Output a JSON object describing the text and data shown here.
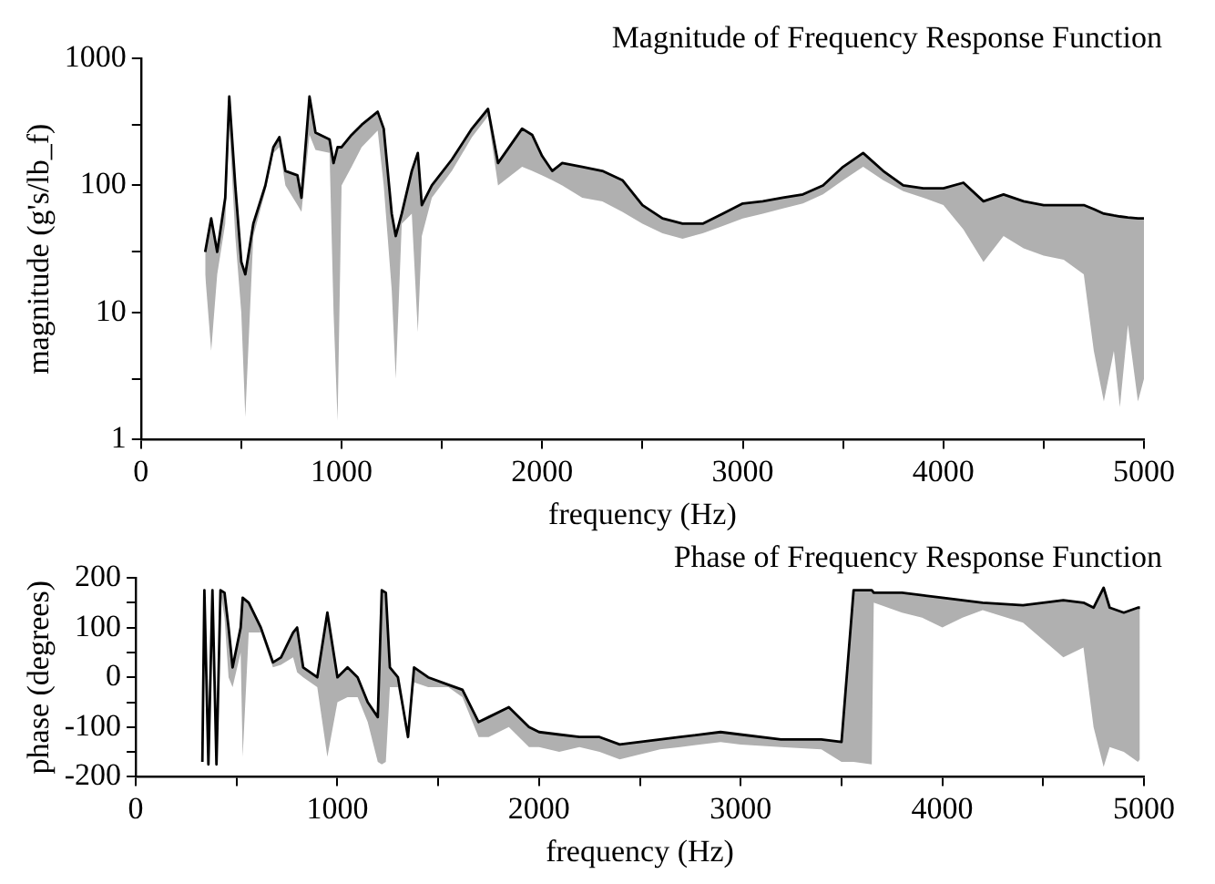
{
  "chart_data": [
    {
      "type": "line",
      "title": "Magnitude of Frequency Response Function",
      "xlabel": "frequency (Hz)",
      "ylabel": "magnitude (g's/lb_f)",
      "log": "y",
      "grid": false,
      "legend": false,
      "marker": "none",
      "line_style": "solid",
      "xlim": [
        0,
        5000
      ],
      "xticks": [
        0,
        {
          "value": 500,
          "label": null
        },
        1000,
        {
          "value": 1500,
          "label": null
        },
        2000,
        {
          "value": 2500,
          "label": null
        },
        3000,
        {
          "value": 3500,
          "label": null
        },
        4000,
        {
          "value": 4500,
          "label": null
        },
        5000
      ],
      "ylim": [
        1,
        1000
      ],
      "yticks": [
        1,
        {
          "value": 3,
          "label": null
        },
        10,
        {
          "value": 30,
          "label": null
        },
        100,
        {
          "value": 300,
          "label": null
        },
        1000
      ],
      "x": [
        320,
        350,
        380,
        420,
        440,
        470,
        500,
        520,
        560,
        620,
        660,
        690,
        720,
        780,
        800,
        840,
        870,
        940,
        960,
        980,
        1000,
        1050,
        1100,
        1180,
        1210,
        1250,
        1270,
        1300,
        1350,
        1380,
        1400,
        1450,
        1550,
        1650,
        1730,
        1780,
        1900,
        1950,
        2000,
        2050,
        2100,
        2200,
        2300,
        2400,
        2500,
        2600,
        2700,
        2800,
        2900,
        3000,
        3100,
        3200,
        3300,
        3400,
        3500,
        3600,
        3700,
        3800,
        3900,
        4000,
        4100,
        4200,
        4300,
        4400,
        4500,
        4600,
        4700,
        4750,
        4800,
        4850,
        4880,
        4920,
        4970,
        5000
      ],
      "series": [
        {
          "color": "#000000",
          "values": [
            30,
            55,
            30,
            80,
            500,
            100,
            25,
            20,
            50,
            100,
            200,
            240,
            130,
            120,
            80,
            500,
            260,
            230,
            150,
            200,
            200,
            250,
            300,
            380,
            280,
            60,
            40,
            60,
            130,
            180,
            70,
            100,
            160,
            280,
            400,
            150,
            280,
            250,
            170,
            130,
            150,
            140,
            130,
            110,
            70,
            55,
            50,
            50,
            60,
            72,
            75,
            80,
            85,
            100,
            140,
            180,
            130,
            100,
            95,
            95,
            105,
            75,
            85,
            75,
            70,
            70,
            70,
            65,
            60,
            58,
            57,
            56,
            55,
            55
          ],
          "upper": [
            30,
            55,
            30,
            80,
            500,
            100,
            25,
            20,
            50,
            100,
            200,
            240,
            130,
            120,
            80,
            500,
            260,
            230,
            150,
            200,
            200,
            250,
            300,
            380,
            280,
            60,
            40,
            60,
            130,
            180,
            70,
            100,
            160,
            280,
            400,
            150,
            280,
            250,
            170,
            130,
            150,
            140,
            130,
            110,
            70,
            55,
            50,
            50,
            60,
            72,
            75,
            80,
            85,
            100,
            140,
            180,
            130,
            100,
            95,
            95,
            105,
            75,
            85,
            75,
            70,
            70,
            70,
            65,
            60,
            58,
            57,
            56,
            55,
            55
          ],
          "lower": [
            20,
            5,
            20,
            50,
            300,
            40,
            10,
            1.5,
            40,
            90,
            180,
            200,
            100,
            70,
            62,
            250,
            190,
            180,
            10,
            1.4,
            100,
            140,
            200,
            270,
            100,
            15,
            3,
            50,
            60,
            7,
            40,
            80,
            130,
            240,
            350,
            100,
            140,
            130,
            120,
            110,
            100,
            80,
            75,
            62,
            50,
            42,
            38,
            42,
            48,
            55,
            60,
            66,
            72,
            85,
            110,
            140,
            110,
            90,
            80,
            70,
            45,
            25,
            40,
            32,
            28,
            26,
            20,
            5,
            2,
            5,
            1.8,
            8,
            2,
            3
          ]
        }
      ]
    },
    {
      "type": "line",
      "title": "Phase of Frequency Response Function",
      "xlabel": "frequency (Hz)",
      "ylabel": "phase (degrees)",
      "grid": false,
      "legend": false,
      "marker": "none",
      "line_style": "solid",
      "xlim": [
        0,
        5000
      ],
      "xticks": [
        0,
        {
          "value": 500,
          "label": null
        },
        1000,
        {
          "value": 1500,
          "label": null
        },
        2000,
        {
          "value": 2500,
          "label": null
        },
        3000,
        {
          "value": 3500,
          "label": null
        },
        4000,
        {
          "value": 4500,
          "label": null
        },
        5000
      ],
      "ylim": [
        -200,
        200
      ],
      "yticks": [
        -200,
        {
          "value": -150,
          "label": null
        },
        -100,
        {
          "value": -50,
          "label": null
        },
        0,
        {
          "value": 50,
          "label": null
        },
        100,
        {
          "value": 150,
          "label": null
        },
        200
      ],
      "x": [
        330,
        340,
        360,
        380,
        400,
        420,
        440,
        460,
        480,
        520,
        530,
        560,
        620,
        680,
        720,
        780,
        800,
        830,
        900,
        950,
        1000,
        1050,
        1100,
        1150,
        1200,
        1220,
        1240,
        1260,
        1300,
        1350,
        1380,
        1450,
        1550,
        1620,
        1700,
        1750,
        1850,
        1950,
        2000,
        2100,
        2200,
        2300,
        2400,
        2500,
        2600,
        2700,
        2900,
        3000,
        3200,
        3400,
        3500,
        3560,
        3650,
        3660,
        3800,
        3900,
        4000,
        4100,
        4200,
        4400,
        4600,
        4700,
        4750,
        4800,
        4830,
        4900,
        4970,
        4980
      ],
      "series": [
        {
          "color": "#000000",
          "values": [
            -170,
            175,
            -175,
            175,
            -175,
            175,
            170,
            100,
            20,
            100,
            160,
            150,
            100,
            30,
            40,
            90,
            100,
            20,
            0,
            130,
            0,
            20,
            0,
            -50,
            -80,
            175,
            170,
            20,
            0,
            -120,
            20,
            0,
            -15,
            -25,
            -90,
            -80,
            -60,
            -100,
            -110,
            -115,
            -120,
            -120,
            -135,
            -130,
            -125,
            -120,
            -110,
            -115,
            -125,
            -125,
            -130,
            175,
            175,
            170,
            170,
            165,
            160,
            155,
            150,
            145,
            155,
            150,
            140,
            180,
            140,
            130,
            140,
            140
          ],
          "upper": [
            -170,
            175,
            -175,
            175,
            -175,
            175,
            170,
            100,
            20,
            100,
            160,
            150,
            100,
            30,
            40,
            90,
            100,
            20,
            0,
            130,
            0,
            20,
            0,
            -50,
            -80,
            175,
            170,
            20,
            0,
            -120,
            20,
            0,
            -15,
            -25,
            -90,
            -80,
            -60,
            -100,
            -110,
            -115,
            -120,
            -120,
            -135,
            -130,
            -125,
            -120,
            -110,
            -115,
            -125,
            -125,
            -130,
            175,
            175,
            170,
            170,
            165,
            160,
            155,
            150,
            145,
            155,
            150,
            140,
            180,
            140,
            130,
            140,
            140
          ],
          "lower": [
            -170,
            170,
            -175,
            170,
            -175,
            170,
            120,
            0,
            -20,
            50,
            -160,
            90,
            90,
            20,
            25,
            40,
            10,
            0,
            -20,
            -160,
            -50,
            -40,
            -40,
            -90,
            -170,
            -175,
            -170,
            -20,
            -20,
            -120,
            -10,
            -20,
            -20,
            -40,
            -120,
            -120,
            -100,
            -140,
            -140,
            -150,
            -140,
            -150,
            -165,
            -155,
            -145,
            -140,
            -130,
            -135,
            -140,
            -145,
            -170,
            -170,
            -175,
            150,
            130,
            120,
            100,
            120,
            135,
            110,
            40,
            60,
            -100,
            -180,
            -140,
            -150,
            -170,
            -165
          ]
        }
      ]
    }
  ]
}
